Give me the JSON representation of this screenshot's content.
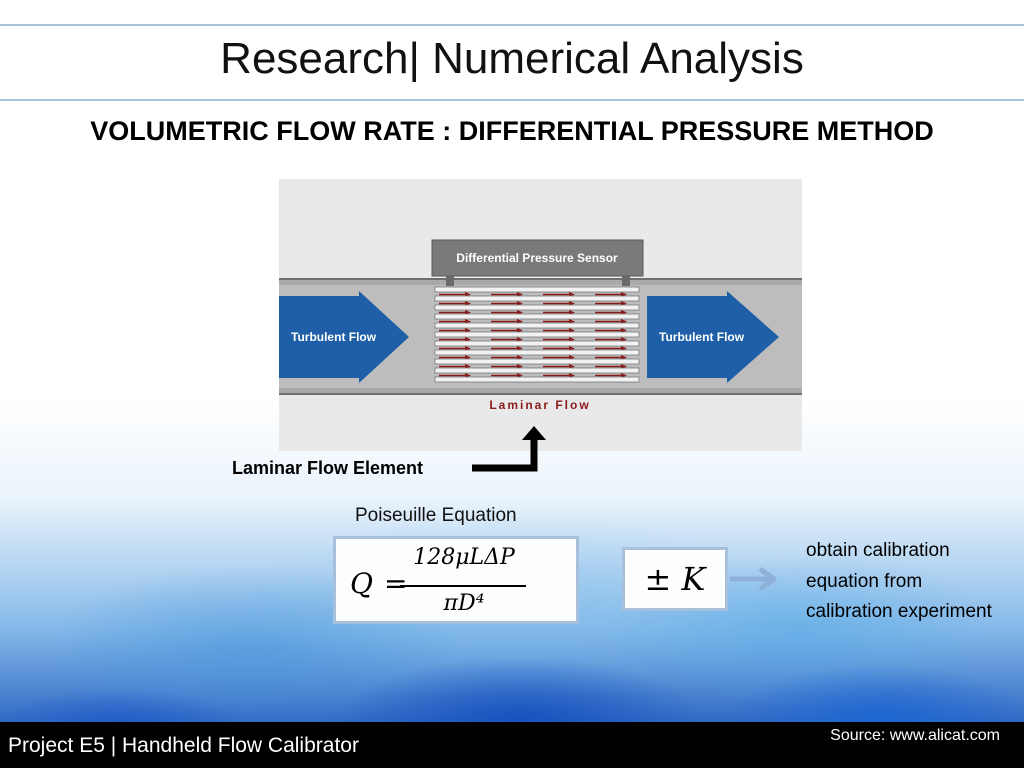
{
  "header": {
    "title": "Research| Numerical Analysis",
    "subtitle": "VOLUMETRIC FLOW RATE : DIFFERENTIAL PRESSURE METHOD"
  },
  "diagram": {
    "sensor_label": "Differential Pressure Sensor",
    "flow_in_label": "Turbulent Flow",
    "flow_out_label": "Turbulent Flow",
    "laminar_label": "Laminar Flow",
    "element_label": "Laminar Flow Element"
  },
  "equation": {
    "heading": "Poiseuille Equation",
    "lhs": "Q",
    "equals": "=",
    "numerator": "128μLΔP",
    "denominator": "πD⁴",
    "correction": "± K"
  },
  "note": "obtain calibration equation from calibration experiment",
  "footer": {
    "project": "Project E5 | Handheld Flow Calibrator",
    "source": "Source: www.alicat.com"
  },
  "colors": {
    "accent_border": "#a8c0dc",
    "arrow_blue": "#1f5fa8",
    "laminar_red": "#8b1a1a",
    "footer_bg": "#000000"
  }
}
